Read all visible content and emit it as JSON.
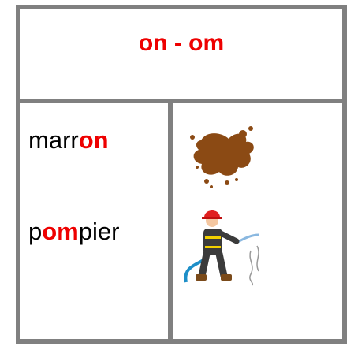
{
  "header": {
    "title": "on - om"
  },
  "words": [
    {
      "parts": [
        "marr",
        "on"
      ]
    },
    {
      "parts": [
        "p",
        "om",
        "pier"
      ]
    }
  ]
}
